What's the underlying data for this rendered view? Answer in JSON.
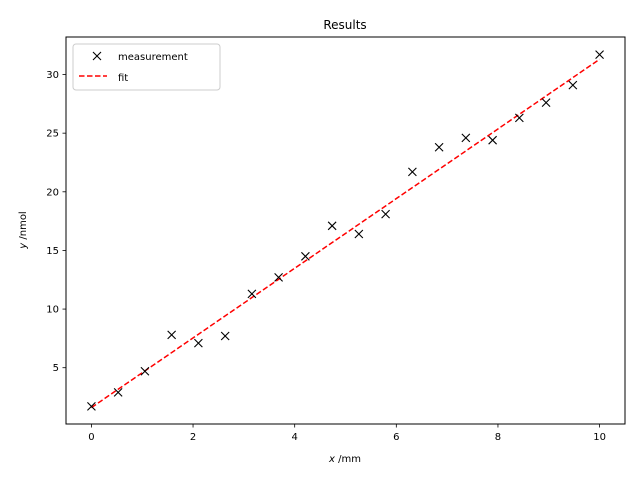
{
  "chart_data": {
    "type": "scatter",
    "title": "Results",
    "xlabel_var": "x",
    "xlabel_unit": " /mm",
    "ylabel_var": "y",
    "ylabel_unit": " /nmol",
    "xlim": [
      -0.5,
      10.5
    ],
    "ylim": [
      0.2,
      33.2
    ],
    "x_ticks": [
      0,
      2,
      4,
      6,
      8,
      10
    ],
    "y_ticks": [
      5,
      10,
      15,
      20,
      25,
      30
    ],
    "grid": false,
    "legend_position": "top-left",
    "series": [
      {
        "name": "measurement",
        "kind": "markers",
        "marker": "x",
        "color": "#000000",
        "x": [
          0.0,
          0.526,
          1.053,
          1.579,
          2.105,
          2.632,
          3.158,
          3.684,
          4.211,
          4.737,
          5.263,
          5.789,
          6.316,
          6.842,
          7.368,
          7.895,
          8.421,
          8.947,
          9.474,
          10.0
        ],
        "y": [
          1.7,
          2.9,
          4.7,
          7.8,
          7.1,
          7.7,
          11.3,
          12.7,
          14.5,
          17.1,
          16.4,
          18.1,
          21.7,
          23.8,
          24.6,
          24.4,
          26.3,
          27.6,
          29.1,
          31.7
        ]
      },
      {
        "name": "fit",
        "kind": "line",
        "style": "dashed",
        "color": "#ff0000",
        "x": [
          0,
          10
        ],
        "y": [
          1.6,
          31.3
        ]
      }
    ]
  }
}
